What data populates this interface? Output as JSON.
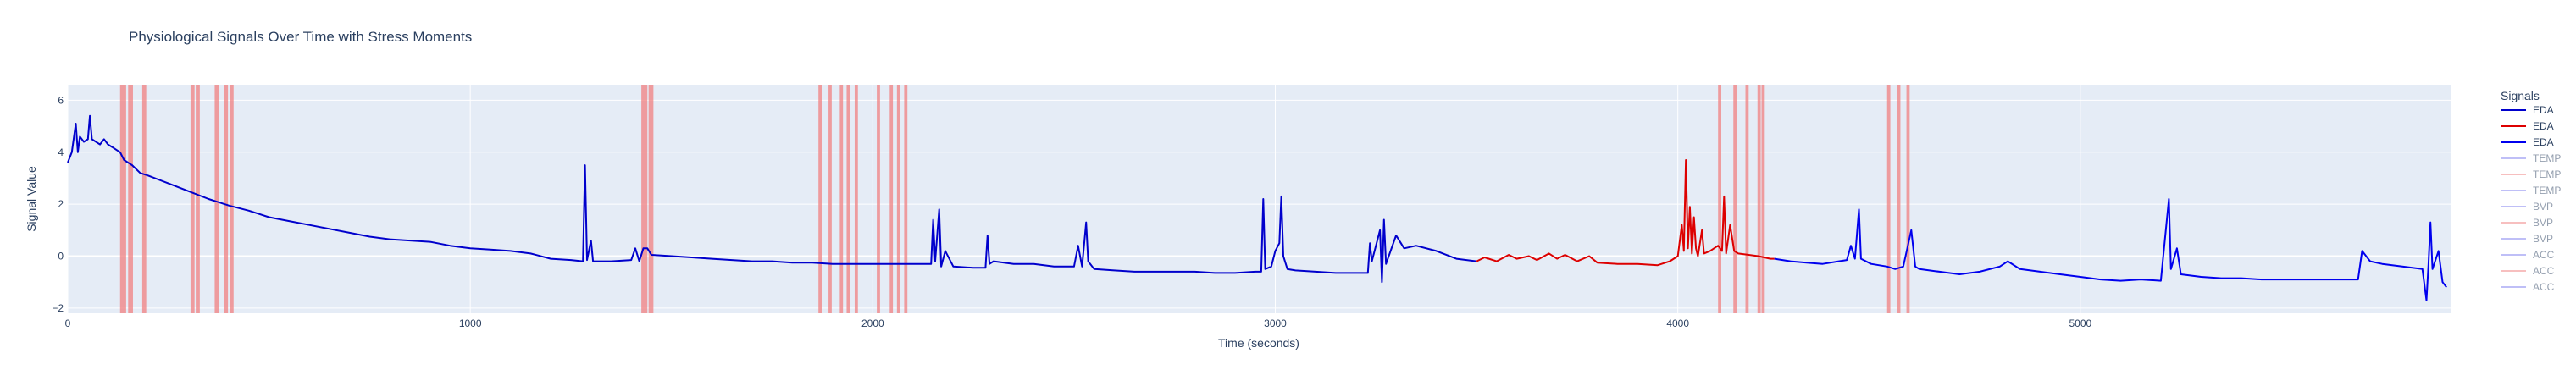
{
  "chart_data": {
    "type": "line",
    "title": "Physiological Signals Over Time with Stress Moments",
    "xlabel": "Time (seconds)",
    "ylabel": "Signal Value",
    "xlim": [
      0,
      5920
    ],
    "ylim": [
      -2.2,
      6.6
    ],
    "x_ticks": [
      {
        "value": 0,
        "label": "0"
      },
      {
        "value": 1000,
        "label": "1000"
      },
      {
        "value": 2000,
        "label": "2000"
      },
      {
        "value": 3000,
        "label": "3000"
      },
      {
        "value": 4000,
        "label": "4000"
      },
      {
        "value": 5000,
        "label": "5000"
      }
    ],
    "y_ticks": [
      {
        "value": -2,
        "label": "−2"
      },
      {
        "value": 0,
        "label": "0"
      },
      {
        "value": 2,
        "label": "2"
      },
      {
        "value": 4,
        "label": "4"
      },
      {
        "value": 6,
        "label": "6"
      }
    ],
    "grid": true,
    "background_color": "#e5ecf6",
    "legend": {
      "title": "Signals",
      "position": "right",
      "items": [
        {
          "label": "EDA",
          "color": "#0000cc",
          "visible": true
        },
        {
          "label": "EDA",
          "color": "#dd0000",
          "visible": true
        },
        {
          "label": "EDA",
          "color": "#0000ee",
          "visible": true
        },
        {
          "label": "TEMP",
          "color": "#8080f0",
          "visible": false
        },
        {
          "label": "TEMP",
          "color": "#f08080",
          "visible": false
        },
        {
          "label": "TEMP",
          "color": "#8080f0",
          "visible": false
        },
        {
          "label": "BVP",
          "color": "#8080f0",
          "visible": false
        },
        {
          "label": "BVP",
          "color": "#f08080",
          "visible": false
        },
        {
          "label": "BVP",
          "color": "#8080f0",
          "visible": false
        },
        {
          "label": "ACC",
          "color": "#8080f0",
          "visible": false
        },
        {
          "label": "ACC",
          "color": "#f08080",
          "visible": false
        },
        {
          "label": "ACC",
          "color": "#8080f0",
          "visible": false
        }
      ]
    },
    "stress_band_color": "#f08080",
    "stress_moments": [
      [
        130,
        145
      ],
      [
        150,
        162
      ],
      [
        185,
        195
      ],
      [
        305,
        315
      ],
      [
        318,
        328
      ],
      [
        365,
        375
      ],
      [
        388,
        398
      ],
      [
        402,
        412
      ],
      [
        1425,
        1440
      ],
      [
        1443,
        1455
      ],
      [
        1865,
        1873
      ],
      [
        1890,
        1898
      ],
      [
        1918,
        1926
      ],
      [
        1935,
        1943
      ],
      [
        1955,
        1963
      ],
      [
        2010,
        2018
      ],
      [
        2042,
        2050
      ],
      [
        2060,
        2068
      ],
      [
        2078,
        2086
      ],
      [
        4100,
        4108
      ],
      [
        4138,
        4146
      ],
      [
        4168,
        4176
      ],
      [
        4198,
        4206
      ],
      [
        4208,
        4216
      ],
      [
        4520,
        4528
      ],
      [
        4545,
        4553
      ],
      [
        4568,
        4576
      ]
    ],
    "series": [
      {
        "name": "EDA",
        "color": "#0000cc",
        "points": [
          [
            0,
            3.6
          ],
          [
            10,
            4.0
          ],
          [
            20,
            5.1
          ],
          [
            25,
            4.0
          ],
          [
            30,
            4.6
          ],
          [
            40,
            4.4
          ],
          [
            50,
            4.5
          ],
          [
            55,
            5.4
          ],
          [
            60,
            4.5
          ],
          [
            70,
            4.4
          ],
          [
            80,
            4.3
          ],
          [
            90,
            4.5
          ],
          [
            100,
            4.3
          ],
          [
            110,
            4.2
          ],
          [
            120,
            4.1
          ],
          [
            130,
            4.0
          ],
          [
            140,
            3.7
          ],
          [
            160,
            3.5
          ],
          [
            180,
            3.2
          ],
          [
            200,
            3.1
          ],
          [
            225,
            2.95
          ],
          [
            250,
            2.8
          ],
          [
            300,
            2.5
          ],
          [
            350,
            2.2
          ],
          [
            400,
            1.95
          ],
          [
            450,
            1.75
          ],
          [
            500,
            1.5
          ],
          [
            550,
            1.35
          ],
          [
            600,
            1.2
          ],
          [
            650,
            1.05
          ],
          [
            700,
            0.9
          ],
          [
            750,
            0.75
          ],
          [
            800,
            0.65
          ],
          [
            850,
            0.6
          ],
          [
            900,
            0.55
          ],
          [
            950,
            0.4
          ],
          [
            1000,
            0.3
          ],
          [
            1050,
            0.25
          ],
          [
            1100,
            0.2
          ],
          [
            1150,
            0.1
          ],
          [
            1200,
            -0.1
          ],
          [
            1250,
            -0.15
          ],
          [
            1280,
            -0.2
          ],
          [
            1285,
            3.5
          ],
          [
            1290,
            -0.15
          ],
          [
            1300,
            0.6
          ],
          [
            1305,
            -0.2
          ],
          [
            1350,
            -0.2
          ],
          [
            1400,
            -0.15
          ],
          [
            1410,
            0.3
          ],
          [
            1420,
            -0.2
          ],
          [
            1430,
            0.3
          ],
          [
            1440,
            0.3
          ],
          [
            1450,
            0.05
          ],
          [
            1500,
            0.0
          ],
          [
            1550,
            -0.05
          ],
          [
            1600,
            -0.1
          ],
          [
            1650,
            -0.15
          ],
          [
            1700,
            -0.2
          ],
          [
            1750,
            -0.2
          ],
          [
            1800,
            -0.25
          ],
          [
            1850,
            -0.25
          ],
          [
            1900,
            -0.3
          ],
          [
            1950,
            -0.3
          ],
          [
            2000,
            -0.3
          ],
          [
            2050,
            -0.3
          ],
          [
            2100,
            -0.3
          ],
          [
            2145,
            -0.3
          ],
          [
            2150,
            1.4
          ],
          [
            2155,
            -0.2
          ],
          [
            2165,
            1.8
          ],
          [
            2170,
            -0.4
          ],
          [
            2180,
            0.2
          ],
          [
            2200,
            -0.4
          ],
          [
            2250,
            -0.45
          ],
          [
            2280,
            -0.45
          ],
          [
            2285,
            0.8
          ],
          [
            2290,
            -0.3
          ],
          [
            2300,
            -0.2
          ],
          [
            2350,
            -0.3
          ],
          [
            2400,
            -0.3
          ],
          [
            2450,
            -0.4
          ],
          [
            2500,
            -0.4
          ],
          [
            2510,
            0.4
          ],
          [
            2520,
            -0.4
          ],
          [
            2530,
            1.3
          ],
          [
            2535,
            -0.2
          ],
          [
            2550,
            -0.5
          ],
          [
            2600,
            -0.55
          ],
          [
            2650,
            -0.6
          ],
          [
            2700,
            -0.6
          ],
          [
            2750,
            -0.6
          ],
          [
            2800,
            -0.6
          ],
          [
            2850,
            -0.65
          ],
          [
            2900,
            -0.65
          ],
          [
            2950,
            -0.6
          ],
          [
            2965,
            -0.6
          ],
          [
            2970,
            2.2
          ],
          [
            2975,
            -0.5
          ],
          [
            2990,
            -0.4
          ],
          [
            3000,
            0.2
          ],
          [
            3010,
            0.5
          ],
          [
            3015,
            2.3
          ],
          [
            3020,
            0.0
          ],
          [
            3030,
            -0.5
          ],
          [
            3050,
            -0.55
          ],
          [
            3100,
            -0.6
          ],
          [
            3150,
            -0.65
          ],
          [
            3200,
            -0.65
          ],
          [
            3230,
            -0.65
          ],
          [
            3235,
            0.5
          ],
          [
            3240,
            -0.2
          ],
          [
            3260,
            1.0
          ],
          [
            3265,
            -1.0
          ],
          [
            3270,
            1.4
          ],
          [
            3275,
            -0.3
          ],
          [
            3300,
            0.8
          ],
          [
            3320,
            0.3
          ],
          [
            3350,
            0.4
          ],
          [
            3400,
            0.2
          ],
          [
            3450,
            -0.1
          ],
          [
            3500,
            -0.2
          ]
        ]
      },
      {
        "name": "EDA",
        "color": "#dd0000",
        "points": [
          [
            3500,
            -0.2
          ],
          [
            3520,
            -0.05
          ],
          [
            3550,
            -0.2
          ],
          [
            3580,
            0.05
          ],
          [
            3600,
            -0.1
          ],
          [
            3630,
            0.0
          ],
          [
            3650,
            -0.15
          ],
          [
            3680,
            0.1
          ],
          [
            3700,
            -0.1
          ],
          [
            3720,
            0.05
          ],
          [
            3750,
            -0.2
          ],
          [
            3780,
            0.0
          ],
          [
            3800,
            -0.25
          ],
          [
            3850,
            -0.3
          ],
          [
            3900,
            -0.3
          ],
          [
            3950,
            -0.35
          ],
          [
            3980,
            -0.2
          ],
          [
            4000,
            0.0
          ],
          [
            4010,
            1.2
          ],
          [
            4015,
            0.2
          ],
          [
            4020,
            3.7
          ],
          [
            4025,
            0.3
          ],
          [
            4030,
            1.9
          ],
          [
            4035,
            0.1
          ],
          [
            4040,
            1.5
          ],
          [
            4045,
            0.3
          ],
          [
            4050,
            0.0
          ],
          [
            4060,
            1.0
          ],
          [
            4065,
            0.1
          ],
          [
            4080,
            0.2
          ],
          [
            4100,
            0.4
          ],
          [
            4110,
            0.2
          ],
          [
            4115,
            2.3
          ],
          [
            4120,
            0.1
          ],
          [
            4130,
            1.2
          ],
          [
            4140,
            0.2
          ],
          [
            4150,
            0.1
          ],
          [
            4200,
            0.0
          ],
          [
            4230,
            -0.1
          ],
          [
            4240,
            -0.1
          ]
        ]
      },
      {
        "name": "EDA",
        "color": "#0000ee",
        "points": [
          [
            4240,
            -0.1
          ],
          [
            4280,
            -0.2
          ],
          [
            4320,
            -0.25
          ],
          [
            4360,
            -0.3
          ],
          [
            4400,
            -0.2
          ],
          [
            4420,
            -0.15
          ],
          [
            4430,
            0.4
          ],
          [
            4440,
            -0.1
          ],
          [
            4450,
            1.8
          ],
          [
            4455,
            -0.1
          ],
          [
            4480,
            -0.3
          ],
          [
            4520,
            -0.4
          ],
          [
            4540,
            -0.5
          ],
          [
            4560,
            -0.4
          ],
          [
            4580,
            1.0
          ],
          [
            4590,
            -0.4
          ],
          [
            4600,
            -0.5
          ],
          [
            4650,
            -0.6
          ],
          [
            4700,
            -0.7
          ],
          [
            4750,
            -0.6
          ],
          [
            4800,
            -0.4
          ],
          [
            4820,
            -0.2
          ],
          [
            4850,
            -0.5
          ],
          [
            4900,
            -0.6
          ],
          [
            4950,
            -0.7
          ],
          [
            5000,
            -0.8
          ],
          [
            5050,
            -0.9
          ],
          [
            5100,
            -0.95
          ],
          [
            5150,
            -0.9
          ],
          [
            5200,
            -0.95
          ],
          [
            5220,
            2.2
          ],
          [
            5225,
            -0.5
          ],
          [
            5240,
            0.3
          ],
          [
            5250,
            -0.7
          ],
          [
            5300,
            -0.8
          ],
          [
            5350,
            -0.85
          ],
          [
            5400,
            -0.85
          ],
          [
            5450,
            -0.9
          ],
          [
            5500,
            -0.9
          ],
          [
            5550,
            -0.9
          ],
          [
            5600,
            -0.9
          ],
          [
            5650,
            -0.9
          ],
          [
            5690,
            -0.9
          ],
          [
            5700,
            0.2
          ],
          [
            5720,
            -0.2
          ],
          [
            5750,
            -0.3
          ],
          [
            5800,
            -0.4
          ],
          [
            5850,
            -0.5
          ],
          [
            5860,
            -1.7
          ],
          [
            5865,
            -0.3
          ],
          [
            5870,
            1.3
          ],
          [
            5875,
            -0.5
          ],
          [
            5890,
            0.2
          ],
          [
            5900,
            -1.0
          ],
          [
            5910,
            -1.2
          ]
        ]
      }
    ]
  }
}
